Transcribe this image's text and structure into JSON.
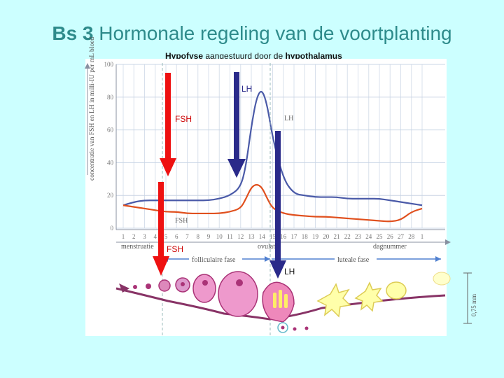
{
  "slide": {
    "title_prefix": "Bs 3",
    "title_rest": "Hormonale regeling van de voortplanting",
    "subtitle_bold1": "Hypofyse",
    "subtitle_mid": " aangestuurd door de ",
    "subtitle_bold2": "hypothalamus"
  },
  "arrow_labels": {
    "lh_top": "LH",
    "fsh_top": "FSH",
    "fsh_bottom": "FSH",
    "lh_bottom": "LH"
  },
  "colors": {
    "background": "#ccffff",
    "title": "#2e8b8b",
    "lh_curve": "#4a5aa8",
    "fsh_curve": "#e0501e",
    "arrow_red": "#ee1111",
    "arrow_blue": "#2a2a8a",
    "phase_arrow": "#5080d0"
  },
  "chart_data": {
    "type": "line",
    "title": "",
    "ylabel": "concentratie van FSH en LH in milli-IU per mL bloed",
    "xlabel": "dagnummer",
    "ylim": [
      0,
      100
    ],
    "y_ticks": [
      0,
      20,
      40,
      60,
      80,
      100
    ],
    "x_tick_labels": [
      "1",
      "2",
      "3",
      "4",
      "5",
      "6",
      "7",
      "8",
      "9",
      "10",
      "11",
      "12",
      "13",
      "14",
      "15",
      "16",
      "17",
      "18",
      "19",
      "20",
      "21",
      "22",
      "23",
      "24",
      "25",
      "26",
      "27",
      "28",
      "1"
    ],
    "series": [
      {
        "name": "LH",
        "x": [
          1,
          2,
          3,
          4,
          5,
          6,
          7,
          8,
          9,
          10,
          11,
          12,
          12.5,
          13,
          13.5,
          14,
          14.5,
          15,
          16,
          17,
          18,
          19,
          20,
          21,
          22,
          23,
          24,
          25,
          26,
          27,
          28,
          29
        ],
        "values": [
          14,
          16,
          17,
          17,
          17,
          17,
          17,
          17,
          17,
          18,
          20,
          25,
          38,
          62,
          80,
          85,
          75,
          55,
          30,
          21,
          20,
          19,
          19,
          19,
          18,
          18,
          18,
          18,
          17,
          16,
          15,
          14
        ]
      },
      {
        "name": "FSH",
        "x": [
          1,
          2,
          3,
          4,
          5,
          6,
          7,
          8,
          9,
          10,
          11,
          12,
          12.5,
          13,
          13.5,
          14,
          14.5,
          15,
          16,
          17,
          18,
          19,
          20,
          21,
          22,
          23,
          24,
          25,
          26,
          27,
          28,
          29
        ],
        "values": [
          14,
          13,
          12,
          11,
          10,
          10,
          9,
          9,
          9,
          9,
          10,
          12,
          18,
          25,
          27,
          25,
          18,
          12,
          9,
          8,
          7.5,
          7,
          7,
          6.5,
          6,
          5.5,
          5,
          4.5,
          4,
          5,
          10,
          12
        ]
      }
    ],
    "annotations": {
      "lh_peak_label": "LH",
      "fsh_label": "FSH",
      "menstruation": "menstruatie",
      "follicular": "folliculaire fase",
      "ovulation": "ovulatie",
      "luteal": "luteale fase",
      "scale": "0,75 mm"
    },
    "grid": true
  }
}
